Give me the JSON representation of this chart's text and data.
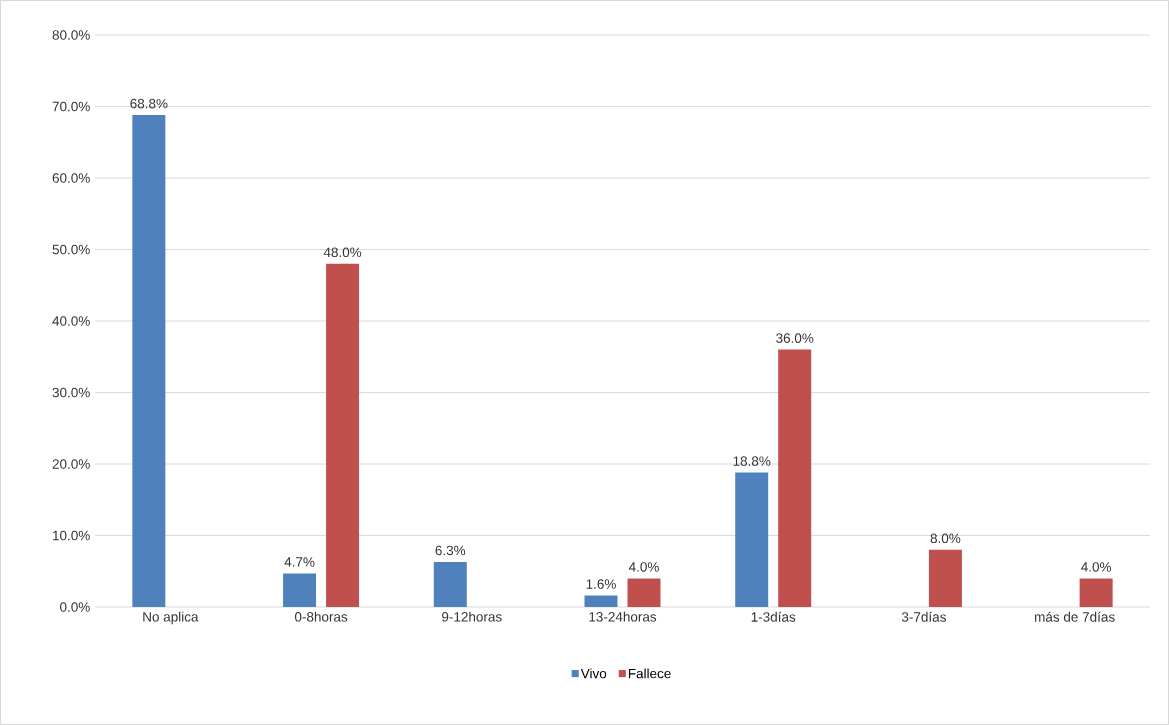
{
  "chart_data": {
    "type": "bar",
    "categories": [
      "No aplica",
      "0-8horas",
      "9-12horas",
      "13-24horas",
      "1-3días",
      "3-7días",
      "más de 7días"
    ],
    "series": [
      {
        "name": "Vivo",
        "color": "#4f81bd",
        "values": [
          68.8,
          4.7,
          6.3,
          1.6,
          18.8,
          null,
          null
        ],
        "value_labels": [
          "68.8%",
          "4.7%",
          "6.3%",
          "1.6%",
          "18.8%",
          null,
          null
        ]
      },
      {
        "name": "Fallece",
        "color": "#c0504d",
        "values": [
          null,
          48.0,
          null,
          4.0,
          36.0,
          8.0,
          4.0
        ],
        "value_labels": [
          null,
          "48.0%",
          null,
          "4.0%",
          "36.0%",
          "8.0%",
          "4.0%"
        ]
      }
    ],
    "ylim": [
      0,
      80
    ],
    "yticks": [
      {
        "value": 0,
        "label": "0.0%"
      },
      {
        "value": 10,
        "label": "10.0%"
      },
      {
        "value": 20,
        "label": "20.0%"
      },
      {
        "value": 30,
        "label": "30.0%"
      },
      {
        "value": 40,
        "label": "40.0%"
      },
      {
        "value": 50,
        "label": "50.0%"
      },
      {
        "value": 60,
        "label": "60.0%"
      },
      {
        "value": 70,
        "label": "70.0%"
      },
      {
        "value": 80,
        "label": "80.0%"
      }
    ],
    "grid": "y",
    "legend": "bottom"
  }
}
